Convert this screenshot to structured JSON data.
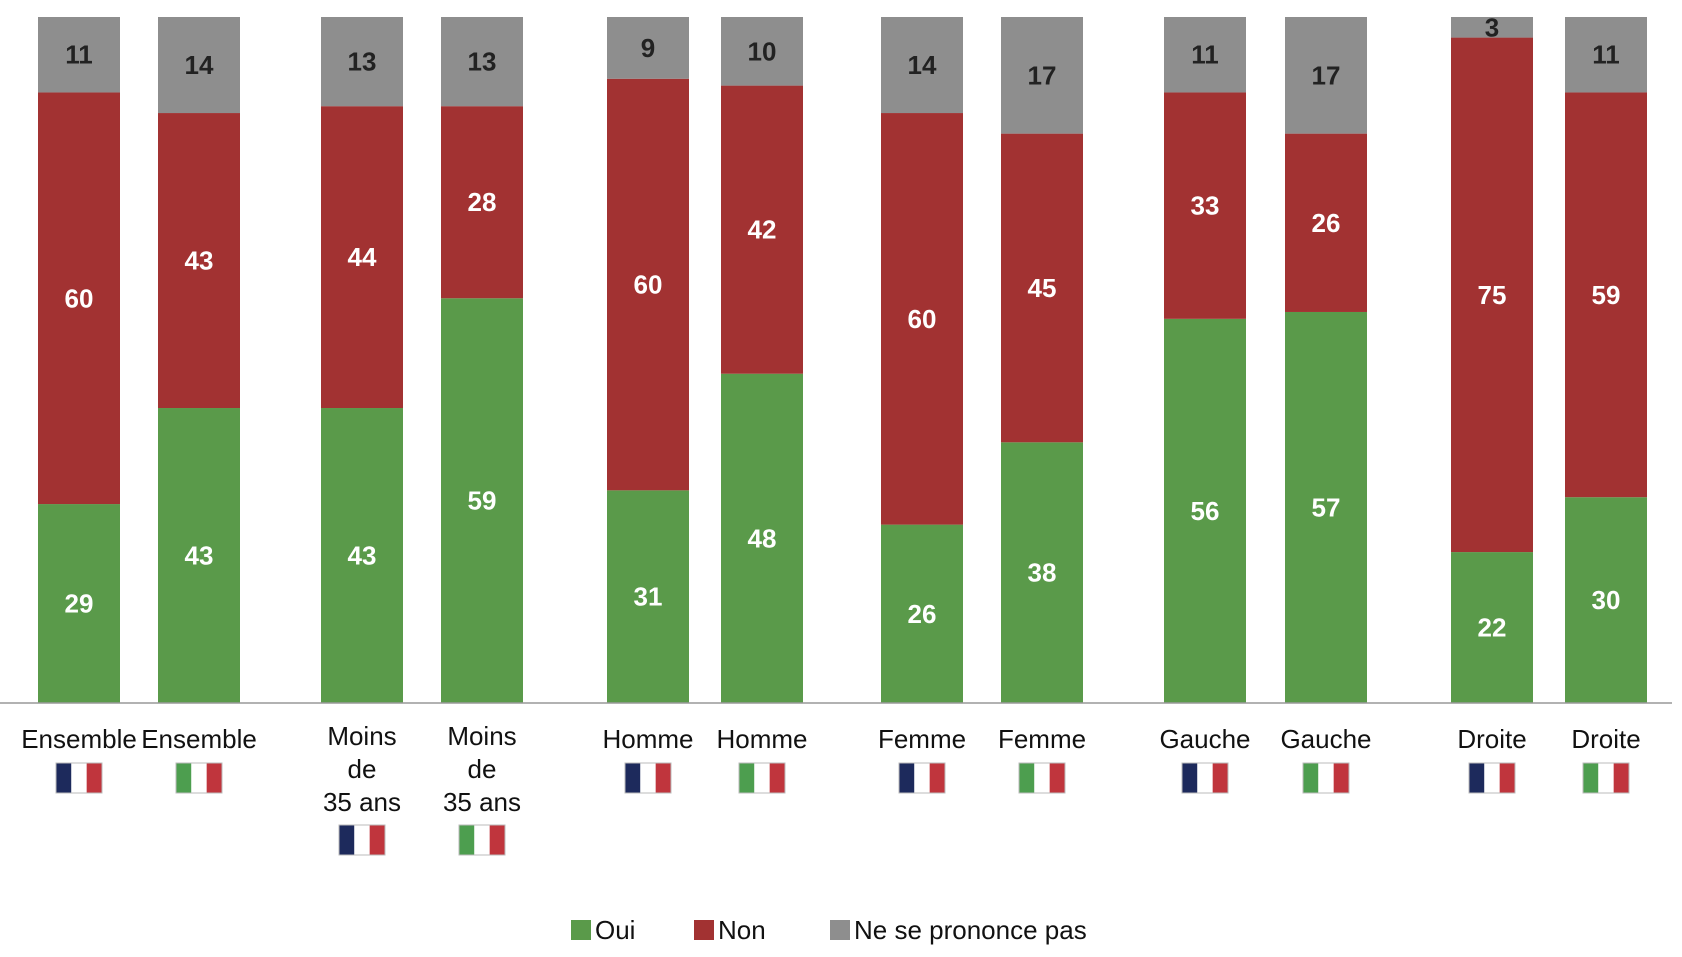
{
  "chart_data": {
    "type": "bar",
    "stacked": true,
    "ylim": [
      0,
      100
    ],
    "grid": false,
    "legend_position": "bottom",
    "categories": [
      {
        "label": "Ensemble",
        "flag": "france-flag"
      },
      {
        "label": "Ensemble",
        "flag": "italy-flag"
      },
      {
        "label": "Moins de 35 ans",
        "flag": "france-flag"
      },
      {
        "label": "Moins de 35 ans",
        "flag": "italy-flag"
      },
      {
        "label": "Homme",
        "flag": "france-flag"
      },
      {
        "label": "Homme",
        "flag": "italy-flag"
      },
      {
        "label": "Femme",
        "flag": "france-flag"
      },
      {
        "label": "Femme",
        "flag": "italy-flag"
      },
      {
        "label": "Gauche",
        "flag": "france-flag"
      },
      {
        "label": "Gauche",
        "flag": "italy-flag"
      },
      {
        "label": "Droite",
        "flag": "france-flag"
      },
      {
        "label": "Droite",
        "flag": "italy-flag"
      }
    ],
    "series": [
      {
        "name": "Oui",
        "color": "#5a9a4a",
        "values": [
          29,
          43,
          43,
          59,
          31,
          48,
          26,
          38,
          56,
          57,
          22,
          30
        ]
      },
      {
        "name": "Non",
        "color": "#a23232",
        "values": [
          60,
          43,
          44,
          28,
          60,
          42,
          60,
          45,
          33,
          26,
          75,
          59
        ]
      },
      {
        "name": "Ne se prononce pas",
        "color": "#8e8e8e",
        "values": [
          11,
          14,
          13,
          13,
          9,
          10,
          14,
          17,
          11,
          17,
          3,
          11
        ]
      }
    ],
    "label_colors": {
      "Oui": "#ffffff",
      "Non": "#ffffff",
      "Ne se prononce pas": "#222222"
    }
  },
  "flag_colors": {
    "france": [
      "#1d2a5c",
      "#ffffff",
      "#c0353d"
    ],
    "italy": [
      "#4d9e4f",
      "#ffffff",
      "#c0353d"
    ]
  }
}
